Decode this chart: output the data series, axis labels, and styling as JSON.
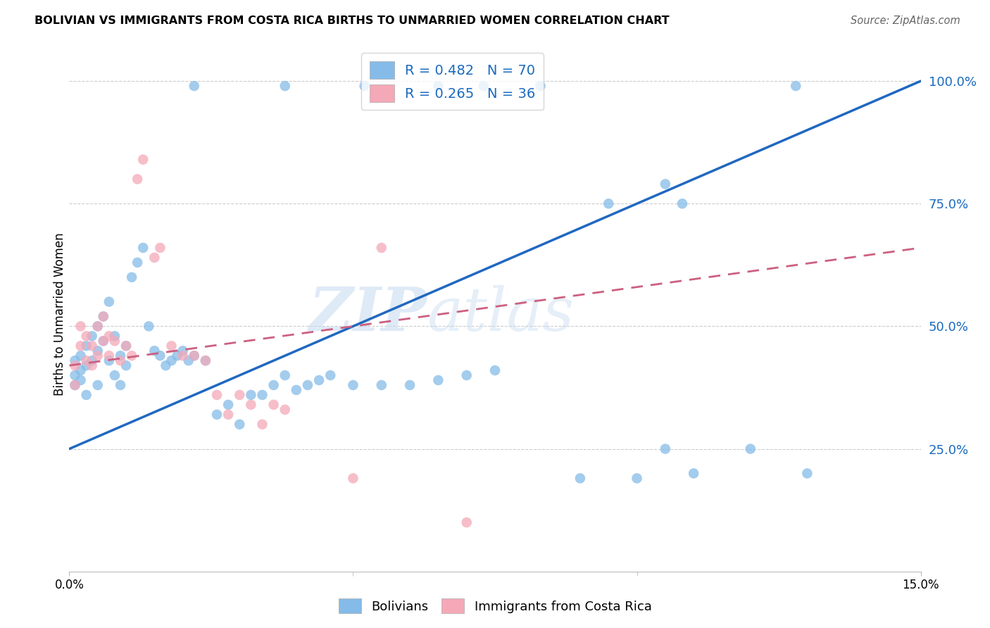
{
  "title": "BOLIVIAN VS IMMIGRANTS FROM COSTA RICA BIRTHS TO UNMARRIED WOMEN CORRELATION CHART",
  "source": "Source: ZipAtlas.com",
  "ylabel": "Births to Unmarried Women",
  "legend_labels": [
    "Bolivians",
    "Immigrants from Costa Rica"
  ],
  "R_blue": 0.482,
  "N_blue": 70,
  "R_pink": 0.265,
  "N_pink": 36,
  "blue_color": "#85BBE8",
  "pink_color": "#F4A8B8",
  "blue_line_color": "#2068C0",
  "pink_line_color": "#CC6080",
  "watermark_zip": "ZIP",
  "watermark_atlas": "atlas",
  "xlim": [
    0,
    0.15
  ],
  "ylim": [
    0,
    1.05
  ],
  "yticks": [
    0.25,
    0.5,
    0.75,
    1.0
  ],
  "ytick_labels": [
    "25.0%",
    "50.0%",
    "75.0%",
    "100.0%"
  ],
  "xtick_positions": [
    0.0,
    0.15
  ],
  "xtick_labels": [
    "0.0%",
    "15.0%"
  ],
  "blue_line_x0": 0.0,
  "blue_line_y0": 0.25,
  "blue_line_x1": 0.15,
  "blue_line_y1": 1.0,
  "pink_line_x0": 0.0,
  "pink_line_y0": 0.42,
  "pink_line_x1": 0.15,
  "pink_line_y1": 0.66,
  "blue_x": [
    0.001,
    0.001,
    0.001,
    0.002,
    0.002,
    0.002,
    0.003,
    0.003,
    0.003,
    0.004,
    0.004,
    0.005,
    0.005,
    0.005,
    0.006,
    0.006,
    0.007,
    0.007,
    0.008,
    0.008,
    0.009,
    0.009,
    0.01,
    0.01,
    0.011,
    0.012,
    0.013,
    0.014,
    0.015,
    0.016,
    0.017,
    0.018,
    0.019,
    0.02,
    0.021,
    0.022,
    0.024,
    0.026,
    0.028,
    0.03,
    0.032,
    0.034,
    0.036,
    0.038,
    0.04,
    0.042,
    0.044,
    0.046,
    0.05,
    0.055,
    0.06,
    0.065,
    0.07,
    0.075,
    0.022,
    0.038,
    0.052,
    0.065,
    0.073,
    0.083,
    0.095,
    0.105,
    0.108,
    0.128,
    0.09,
    0.1,
    0.11,
    0.13,
    0.105,
    0.12
  ],
  "blue_y": [
    0.38,
    0.43,
    0.4,
    0.44,
    0.41,
    0.39,
    0.46,
    0.42,
    0.36,
    0.48,
    0.43,
    0.5,
    0.45,
    0.38,
    0.52,
    0.47,
    0.55,
    0.43,
    0.48,
    0.4,
    0.44,
    0.38,
    0.46,
    0.42,
    0.6,
    0.63,
    0.66,
    0.5,
    0.45,
    0.44,
    0.42,
    0.43,
    0.44,
    0.45,
    0.43,
    0.44,
    0.43,
    0.32,
    0.34,
    0.3,
    0.36,
    0.36,
    0.38,
    0.4,
    0.37,
    0.38,
    0.39,
    0.4,
    0.38,
    0.38,
    0.38,
    0.39,
    0.4,
    0.41,
    0.99,
    0.99,
    0.99,
    0.99,
    0.99,
    0.99,
    0.75,
    0.79,
    0.75,
    0.99,
    0.19,
    0.19,
    0.2,
    0.2,
    0.25,
    0.25
  ],
  "pink_x": [
    0.001,
    0.001,
    0.002,
    0.002,
    0.003,
    0.003,
    0.004,
    0.004,
    0.005,
    0.005,
    0.006,
    0.006,
    0.007,
    0.007,
    0.008,
    0.009,
    0.01,
    0.011,
    0.012,
    0.013,
    0.015,
    0.016,
    0.018,
    0.02,
    0.022,
    0.024,
    0.026,
    0.028,
    0.03,
    0.032,
    0.034,
    0.036,
    0.038,
    0.05,
    0.055,
    0.07
  ],
  "pink_y": [
    0.38,
    0.42,
    0.46,
    0.5,
    0.48,
    0.43,
    0.46,
    0.42,
    0.5,
    0.44,
    0.52,
    0.47,
    0.48,
    0.44,
    0.47,
    0.43,
    0.46,
    0.44,
    0.8,
    0.84,
    0.64,
    0.66,
    0.46,
    0.44,
    0.44,
    0.43,
    0.36,
    0.32,
    0.36,
    0.34,
    0.3,
    0.34,
    0.33,
    0.19,
    0.66,
    0.1
  ]
}
